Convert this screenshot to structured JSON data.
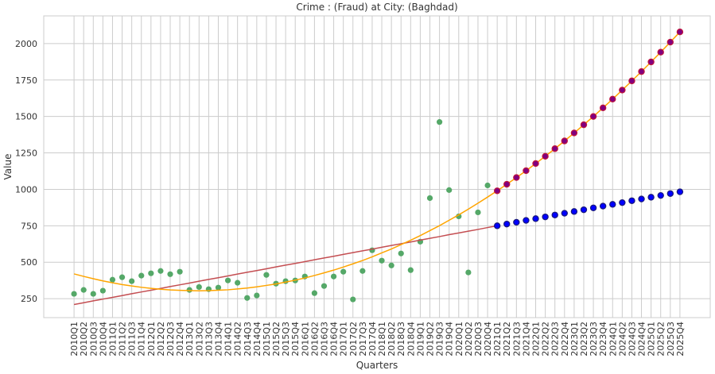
{
  "chart_data": {
    "type": "combo",
    "title": "Crime : (Fraud) at City: (Baghdad)",
    "x_label": "Quarters",
    "y_label": "Value",
    "categories": [
      "2010Q1",
      "2010Q2",
      "2010Q3",
      "2010Q4",
      "2011Q1",
      "2011Q2",
      "2011Q3",
      "2011Q4",
      "2012Q1",
      "2012Q2",
      "2012Q3",
      "2012Q4",
      "2013Q1",
      "2013Q2",
      "2013Q3",
      "2013Q4",
      "2014Q1",
      "2014Q2",
      "2014Q3",
      "2014Q4",
      "2015Q1",
      "2015Q2",
      "2015Q3",
      "2015Q4",
      "2016Q1",
      "2016Q2",
      "2016Q3",
      "2016Q4",
      "2017Q1",
      "2017Q2",
      "2017Q3",
      "2017Q4",
      "2018Q1",
      "2018Q2",
      "2018Q3",
      "2018Q4",
      "2019Q1",
      "2019Q2",
      "2019Q3",
      "2019Q4",
      "2020Q1",
      "2020Q2",
      "2020Q3",
      "2020Q4",
      "2021Q1",
      "2021Q2",
      "2021Q3",
      "2021Q4",
      "2022Q1",
      "2022Q2",
      "2022Q3",
      "2022Q4",
      "2023Q1",
      "2023Q2",
      "2023Q3",
      "2023Q4",
      "2024Q1",
      "2024Q2",
      "2024Q3",
      "2024Q4",
      "2025Q1",
      "2025Q2",
      "2025Q3",
      "2025Q4"
    ],
    "ylim": [
      120,
      2190
    ],
    "yticks": [
      250,
      500,
      750,
      1000,
      1250,
      1500,
      1750,
      2000
    ],
    "grid": true,
    "series": [
      {
        "type": "scatter",
        "color": "#55a868",
        "values": [
          283,
          310,
          283,
          305,
          380,
          397,
          370,
          408,
          424,
          440,
          418,
          435,
          310,
          330,
          315,
          326,
          375,
          359,
          255,
          272,
          413,
          353,
          370,
          375,
          402,
          288,
          337,
          402,
          435,
          245,
          440,
          582,
          511,
          478,
          560,
          446,
          641,
          940,
          1462,
          995,
          815,
          430,
          842,
          1027,
          null,
          null,
          null,
          null,
          null,
          null,
          null,
          null,
          null,
          null,
          null,
          null,
          null,
          null,
          null,
          null,
          null,
          null,
          null,
          null
        ]
      },
      {
        "type": "line",
        "color": "#c44e52",
        "values": [
          210,
          222,
          235,
          247,
          259,
          271,
          284,
          296,
          308,
          320,
          333,
          345,
          357,
          370,
          382,
          394,
          406,
          419,
          431,
          443,
          455,
          468,
          480,
          492,
          504,
          517,
          529,
          541,
          554,
          566,
          578,
          590,
          603,
          615,
          627,
          639,
          652,
          664,
          676,
          689,
          701,
          713,
          725,
          738,
          750,
          null,
          null,
          null,
          null,
          null,
          null,
          null,
          null,
          null,
          null,
          null,
          null,
          null,
          null,
          null,
          null,
          null,
          null,
          null
        ]
      },
      {
        "type": "line",
        "color": "orange",
        "values": [
          420,
          403,
          387,
          372,
          359,
          347,
          337,
          328,
          321,
          315,
          310,
          307,
          305,
          304,
          305,
          308,
          311,
          317,
          323,
          331,
          341,
          351,
          364,
          377,
          392,
          409,
          427,
          446,
          467,
          489,
          512,
          537,
          564,
          591,
          621,
          651,
          683,
          717,
          751,
          788,
          825,
          864,
          905,
          947,
          990,
          1035,
          1081,
          1128,
          1177,
          1227,
          1279,
          1332,
          1387,
          1443,
          1500,
          1559,
          1619,
          1681,
          1744,
          1808,
          1874,
          1941,
          2010,
          2080
        ]
      },
      {
        "type": "scatter",
        "color": "purple",
        "edgecolor": "#c0143c",
        "values": [
          null,
          null,
          null,
          null,
          null,
          null,
          null,
          null,
          null,
          null,
          null,
          null,
          null,
          null,
          null,
          null,
          null,
          null,
          null,
          null,
          null,
          null,
          null,
          null,
          null,
          null,
          null,
          null,
          null,
          null,
          null,
          null,
          null,
          null,
          null,
          null,
          null,
          null,
          null,
          null,
          null,
          null,
          null,
          null,
          990,
          1035,
          1081,
          1128,
          1177,
          1227,
          1279,
          1332,
          1387,
          1443,
          1500,
          1559,
          1619,
          1681,
          1744,
          1808,
          1874,
          1941,
          2010,
          2080
        ]
      },
      {
        "type": "scatter",
        "color": "blue",
        "edgecolor": "#1a1a7a",
        "values": [
          null,
          null,
          null,
          null,
          null,
          null,
          null,
          null,
          null,
          null,
          null,
          null,
          null,
          null,
          null,
          null,
          null,
          null,
          null,
          null,
          null,
          null,
          null,
          null,
          null,
          null,
          null,
          null,
          null,
          null,
          null,
          null,
          null,
          null,
          null,
          null,
          null,
          null,
          null,
          null,
          null,
          null,
          null,
          null,
          750,
          762,
          774,
          787,
          799,
          811,
          824,
          836,
          848,
          860,
          873,
          885,
          897,
          909,
          922,
          934,
          946,
          958,
          971,
          983
        ]
      }
    ]
  }
}
